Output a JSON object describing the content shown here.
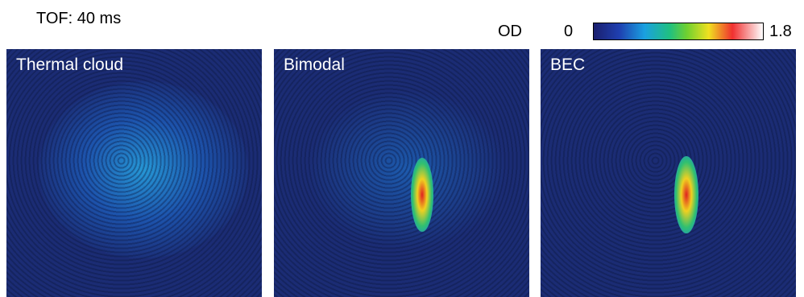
{
  "header": {
    "label": "TOF: 40 ms"
  },
  "colorbar": {
    "label": "OD",
    "min": "0",
    "max": "1.8"
  },
  "panels": [
    {
      "title": "Thermal cloud"
    },
    {
      "title": "Bimodal"
    },
    {
      "title": "BEC"
    }
  ]
}
